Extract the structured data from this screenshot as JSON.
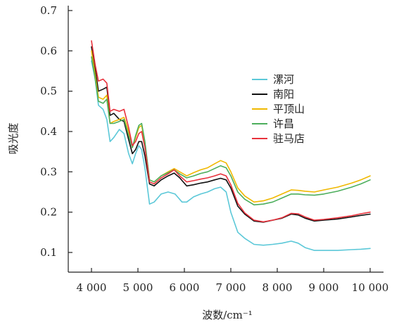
{
  "chart_data": {
    "type": "line",
    "xlabel": "波数/cm⁻¹",
    "ylabel": "吸光度",
    "xlim": [
      4000,
      10000
    ],
    "ylim": [
      0.08,
      0.72
    ],
    "x_ticks": [
      4000,
      5000,
      6000,
      7000,
      8000,
      9000,
      10000
    ],
    "x_tick_labels": [
      "4 000",
      "5 000",
      "6 000",
      "7 000",
      "8 000",
      "9 000",
      "10 000"
    ],
    "y_ticks": [
      0.1,
      0.2,
      0.3,
      0.4,
      0.5,
      0.6,
      0.7
    ],
    "y_tick_labels": [
      "0.1",
      "0.2",
      "0.3",
      "0.4",
      "0.5",
      "0.6",
      "0.7"
    ],
    "legend_position": "center-right",
    "series": [
      {
        "name": "漯河",
        "color": "#5bc8d8",
        "points": [
          [
            4000,
            0.575
          ],
          [
            4080,
            0.53
          ],
          [
            4150,
            0.465
          ],
          [
            4250,
            0.455
          ],
          [
            4330,
            0.43
          ],
          [
            4400,
            0.375
          ],
          [
            4480,
            0.385
          ],
          [
            4600,
            0.405
          ],
          [
            4700,
            0.395
          ],
          [
            4800,
            0.345
          ],
          [
            4880,
            0.32
          ],
          [
            4950,
            0.345
          ],
          [
            5020,
            0.365
          ],
          [
            5080,
            0.355
          ],
          [
            5150,
            0.31
          ],
          [
            5250,
            0.22
          ],
          [
            5350,
            0.225
          ],
          [
            5500,
            0.245
          ],
          [
            5650,
            0.25
          ],
          [
            5800,
            0.245
          ],
          [
            5950,
            0.225
          ],
          [
            6050,
            0.225
          ],
          [
            6200,
            0.238
          ],
          [
            6350,
            0.245
          ],
          [
            6500,
            0.25
          ],
          [
            6650,
            0.258
          ],
          [
            6780,
            0.262
          ],
          [
            6900,
            0.25
          ],
          [
            7000,
            0.2
          ],
          [
            7150,
            0.15
          ],
          [
            7300,
            0.135
          ],
          [
            7500,
            0.12
          ],
          [
            7700,
            0.118
          ],
          [
            7900,
            0.12
          ],
          [
            8100,
            0.123
          ],
          [
            8300,
            0.128
          ],
          [
            8450,
            0.123
          ],
          [
            8600,
            0.112
          ],
          [
            8800,
            0.105
          ],
          [
            9000,
            0.105
          ],
          [
            9300,
            0.105
          ],
          [
            9600,
            0.107
          ],
          [
            9800,
            0.108
          ],
          [
            10000,
            0.11
          ]
        ]
      },
      {
        "name": "南阳",
        "color": "#111111",
        "points": [
          [
            4000,
            0.61
          ],
          [
            4080,
            0.555
          ],
          [
            4150,
            0.5
          ],
          [
            4250,
            0.505
          ],
          [
            4330,
            0.51
          ],
          [
            4400,
            0.44
          ],
          [
            4480,
            0.445
          ],
          [
            4600,
            0.43
          ],
          [
            4700,
            0.425
          ],
          [
            4800,
            0.38
          ],
          [
            4880,
            0.345
          ],
          [
            4950,
            0.355
          ],
          [
            5020,
            0.375
          ],
          [
            5080,
            0.375
          ],
          [
            5150,
            0.34
          ],
          [
            5250,
            0.27
          ],
          [
            5350,
            0.265
          ],
          [
            5500,
            0.28
          ],
          [
            5650,
            0.29
          ],
          [
            5780,
            0.297
          ],
          [
            5900,
            0.285
          ],
          [
            6050,
            0.265
          ],
          [
            6200,
            0.268
          ],
          [
            6350,
            0.272
          ],
          [
            6500,
            0.275
          ],
          [
            6650,
            0.28
          ],
          [
            6780,
            0.284
          ],
          [
            6900,
            0.28
          ],
          [
            7000,
            0.26
          ],
          [
            7150,
            0.215
          ],
          [
            7300,
            0.195
          ],
          [
            7500,
            0.178
          ],
          [
            7700,
            0.175
          ],
          [
            7900,
            0.18
          ],
          [
            8100,
            0.185
          ],
          [
            8300,
            0.195
          ],
          [
            8450,
            0.193
          ],
          [
            8600,
            0.185
          ],
          [
            8800,
            0.178
          ],
          [
            9000,
            0.18
          ],
          [
            9300,
            0.183
          ],
          [
            9600,
            0.188
          ],
          [
            9800,
            0.192
          ],
          [
            10000,
            0.195
          ]
        ]
      },
      {
        "name": "平顶山",
        "color": "#f0b800",
        "points": [
          [
            4000,
            0.6
          ],
          [
            4080,
            0.54
          ],
          [
            4150,
            0.485
          ],
          [
            4250,
            0.48
          ],
          [
            4330,
            0.49
          ],
          [
            4400,
            0.42
          ],
          [
            4480,
            0.425
          ],
          [
            4600,
            0.43
          ],
          [
            4700,
            0.435
          ],
          [
            4800,
            0.4
          ],
          [
            4880,
            0.36
          ],
          [
            4950,
            0.385
          ],
          [
            5020,
            0.41
          ],
          [
            5080,
            0.415
          ],
          [
            5150,
            0.37
          ],
          [
            5250,
            0.28
          ],
          [
            5350,
            0.275
          ],
          [
            5500,
            0.29
          ],
          [
            5650,
            0.3
          ],
          [
            5780,
            0.308
          ],
          [
            5900,
            0.3
          ],
          [
            6050,
            0.29
          ],
          [
            6200,
            0.298
          ],
          [
            6350,
            0.305
          ],
          [
            6500,
            0.31
          ],
          [
            6650,
            0.32
          ],
          [
            6780,
            0.328
          ],
          [
            6900,
            0.322
          ],
          [
            7000,
            0.3
          ],
          [
            7150,
            0.26
          ],
          [
            7300,
            0.24
          ],
          [
            7500,
            0.225
          ],
          [
            7700,
            0.228
          ],
          [
            7900,
            0.235
          ],
          [
            8100,
            0.245
          ],
          [
            8300,
            0.255
          ],
          [
            8450,
            0.254
          ],
          [
            8600,
            0.252
          ],
          [
            8800,
            0.25
          ],
          [
            9000,
            0.255
          ],
          [
            9300,
            0.262
          ],
          [
            9600,
            0.272
          ],
          [
            9800,
            0.28
          ],
          [
            10000,
            0.29
          ]
        ]
      },
      {
        "name": "许昌",
        "color": "#4cae5c",
        "points": [
          [
            4000,
            0.585
          ],
          [
            4080,
            0.53
          ],
          [
            4150,
            0.475
          ],
          [
            4250,
            0.47
          ],
          [
            4330,
            0.48
          ],
          [
            4400,
            0.42
          ],
          [
            4480,
            0.42
          ],
          [
            4600,
            0.425
          ],
          [
            4700,
            0.43
          ],
          [
            4800,
            0.39
          ],
          [
            4880,
            0.36
          ],
          [
            4950,
            0.39
          ],
          [
            5020,
            0.415
          ],
          [
            5080,
            0.42
          ],
          [
            5150,
            0.375
          ],
          [
            5250,
            0.28
          ],
          [
            5350,
            0.275
          ],
          [
            5500,
            0.29
          ],
          [
            5650,
            0.298
          ],
          [
            5780,
            0.305
          ],
          [
            5900,
            0.295
          ],
          [
            6050,
            0.285
          ],
          [
            6200,
            0.29
          ],
          [
            6350,
            0.296
          ],
          [
            6500,
            0.3
          ],
          [
            6650,
            0.308
          ],
          [
            6780,
            0.315
          ],
          [
            6900,
            0.31
          ],
          [
            7000,
            0.29
          ],
          [
            7150,
            0.25
          ],
          [
            7300,
            0.232
          ],
          [
            7500,
            0.218
          ],
          [
            7700,
            0.22
          ],
          [
            7900,
            0.225
          ],
          [
            8100,
            0.235
          ],
          [
            8300,
            0.245
          ],
          [
            8450,
            0.245
          ],
          [
            8600,
            0.243
          ],
          [
            8800,
            0.242
          ],
          [
            9000,
            0.245
          ],
          [
            9300,
            0.252
          ],
          [
            9600,
            0.262
          ],
          [
            9800,
            0.27
          ],
          [
            10000,
            0.28
          ]
        ]
      },
      {
        "name": "驻马店",
        "color": "#e8323c",
        "points": [
          [
            4000,
            0.625
          ],
          [
            4080,
            0.565
          ],
          [
            4150,
            0.525
          ],
          [
            4250,
            0.53
          ],
          [
            4330,
            0.52
          ],
          [
            4400,
            0.45
          ],
          [
            4480,
            0.455
          ],
          [
            4600,
            0.45
          ],
          [
            4700,
            0.455
          ],
          [
            4800,
            0.41
          ],
          [
            4880,
            0.365
          ],
          [
            4950,
            0.375
          ],
          [
            5020,
            0.395
          ],
          [
            5080,
            0.4
          ],
          [
            5150,
            0.36
          ],
          [
            5250,
            0.275
          ],
          [
            5350,
            0.27
          ],
          [
            5500,
            0.285
          ],
          [
            5650,
            0.295
          ],
          [
            5780,
            0.305
          ],
          [
            5900,
            0.29
          ],
          [
            6050,
            0.275
          ],
          [
            6200,
            0.278
          ],
          [
            6350,
            0.282
          ],
          [
            6500,
            0.285
          ],
          [
            6650,
            0.29
          ],
          [
            6780,
            0.295
          ],
          [
            6900,
            0.29
          ],
          [
            7000,
            0.268
          ],
          [
            7150,
            0.222
          ],
          [
            7300,
            0.198
          ],
          [
            7500,
            0.18
          ],
          [
            7700,
            0.176
          ],
          [
            7900,
            0.18
          ],
          [
            8100,
            0.186
          ],
          [
            8300,
            0.197
          ],
          [
            8450,
            0.196
          ],
          [
            8600,
            0.188
          ],
          [
            8800,
            0.18
          ],
          [
            9000,
            0.182
          ],
          [
            9300,
            0.186
          ],
          [
            9600,
            0.191
          ],
          [
            9800,
            0.196
          ],
          [
            10000,
            0.2
          ]
        ]
      }
    ]
  }
}
